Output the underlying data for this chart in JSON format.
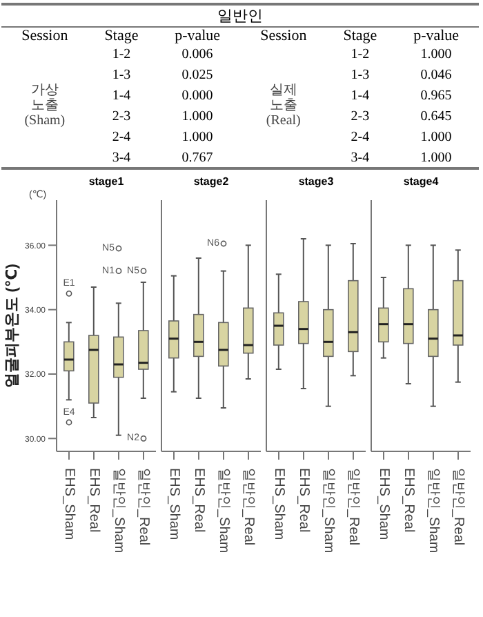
{
  "chart_data": [
    {
      "type": "other",
      "title": "일반인",
      "categories": [
        "Session",
        "Stage",
        "p-value",
        "Session",
        "Stage",
        "p-value"
      ],
      "y_categories": [
        "가상 노출 (Sham)",
        "실제 노출 (Real)"
      ],
      "cell_labels": [
        [
          "1-2",
          "0.006",
          "1-2",
          "1.000"
        ],
        [
          "1-3",
          "0.025",
          "1-3",
          "0.046"
        ],
        [
          "1-4",
          "0.000",
          "1-4",
          "0.965"
        ],
        [
          "2-3",
          "1.000",
          "2-3",
          "0.645"
        ],
        [
          "2-4",
          "1.000",
          "2-4",
          "1.000"
        ],
        [
          "3-4",
          "0.767",
          "3-4",
          "1.000"
        ]
      ]
    },
    {
      "type": "box",
      "title": "stage1",
      "ylabel": "얼굴피부온도 (℃)",
      "categories": [
        "EHS_Sham",
        "EHS_Real",
        "일반인_Sham",
        "일반인_Real"
      ],
      "ylim": [
        29.6,
        37.4
      ],
      "yticks": [
        {
          "value": 30,
          "label": "30.00"
        },
        {
          "value": 32,
          "label": "32.00"
        },
        {
          "value": 34,
          "label": "34.00"
        },
        {
          "value": 36,
          "label": "36.00"
        }
      ],
      "annotations": [
        "(℃)",
        "E1",
        "E4",
        "N5",
        "N1",
        "N5",
        "N2"
      ],
      "boxes": [
        {
          "low": 31.2,
          "q1": 32.1,
          "median": 32.45,
          "q3": 33.0,
          "high": 33.6,
          "outliers": [
            34.5,
            30.5
          ]
        },
        {
          "low": 30.65,
          "q1": 31.1,
          "median": 32.75,
          "q3": 33.2,
          "high": 34.7
        },
        {
          "low": 30.1,
          "q1": 31.9,
          "median": 32.3,
          "q3": 33.15,
          "high": 34.2,
          "outliers": [
            35.9,
            35.2
          ]
        },
        {
          "low": 31.25,
          "q1": 32.15,
          "median": 32.35,
          "q3": 33.35,
          "high": 34.85,
          "outliers": [
            35.2,
            30.0
          ]
        }
      ]
    },
    {
      "type": "box",
      "title": "stage2",
      "tick_labels": "x",
      "categories": [
        "EHS_Sham",
        "EHS_Real",
        "일반인_Sham",
        "일반인_Real"
      ],
      "ylim": [
        29.6,
        37.4
      ],
      "annotations": [
        "N6"
      ],
      "boxes": [
        {
          "low": 31.45,
          "q1": 32.5,
          "median": 33.1,
          "q3": 33.65,
          "high": 35.05
        },
        {
          "low": 31.25,
          "q1": 32.55,
          "median": 33.0,
          "q3": 33.85,
          "high": 35.6
        },
        {
          "low": 30.95,
          "q1": 32.25,
          "median": 32.75,
          "q3": 33.6,
          "high": 35.2,
          "outliers": [
            36.05
          ]
        },
        {
          "low": 31.85,
          "q1": 32.65,
          "median": 32.9,
          "q3": 34.05,
          "high": 36.0
        }
      ]
    },
    {
      "type": "box",
      "title": "stage3",
      "tick_labels": "x",
      "categories": [
        "EHS_Sham",
        "EHS_Real",
        "일반인_Sham",
        "일반인_Real"
      ],
      "ylim": [
        29.6,
        37.4
      ],
      "boxes": [
        {
          "low": 32.15,
          "q1": 32.9,
          "median": 33.5,
          "q3": 33.9,
          "high": 35.1
        },
        {
          "low": 31.55,
          "q1": 32.95,
          "median": 33.4,
          "q3": 34.25,
          "high": 36.2
        },
        {
          "low": 31.0,
          "q1": 32.55,
          "median": 33.0,
          "q3": 34.0,
          "high": 36.0
        },
        {
          "low": 31.95,
          "q1": 32.7,
          "median": 33.3,
          "q3": 34.9,
          "high": 36.05
        }
      ]
    },
    {
      "type": "box",
      "title": "stage4",
      "tick_labels": "x",
      "categories": [
        "EHS_Sham",
        "EHS_Real",
        "일반인_Sham",
        "일반인_Real"
      ],
      "ylim": [
        29.6,
        37.4
      ],
      "boxes": [
        {
          "low": 32.5,
          "q1": 33.0,
          "median": 33.55,
          "q3": 34.05,
          "high": 35.0
        },
        {
          "low": 31.7,
          "q1": 32.95,
          "median": 33.55,
          "q3": 34.65,
          "high": 36.0
        },
        {
          "low": 31.0,
          "q1": 32.55,
          "median": 33.1,
          "q3": 34.0,
          "high": 36.0
        },
        {
          "low": 31.75,
          "q1": 32.9,
          "median": 33.2,
          "q3": 34.9,
          "high": 35.85
        }
      ]
    }
  ]
}
